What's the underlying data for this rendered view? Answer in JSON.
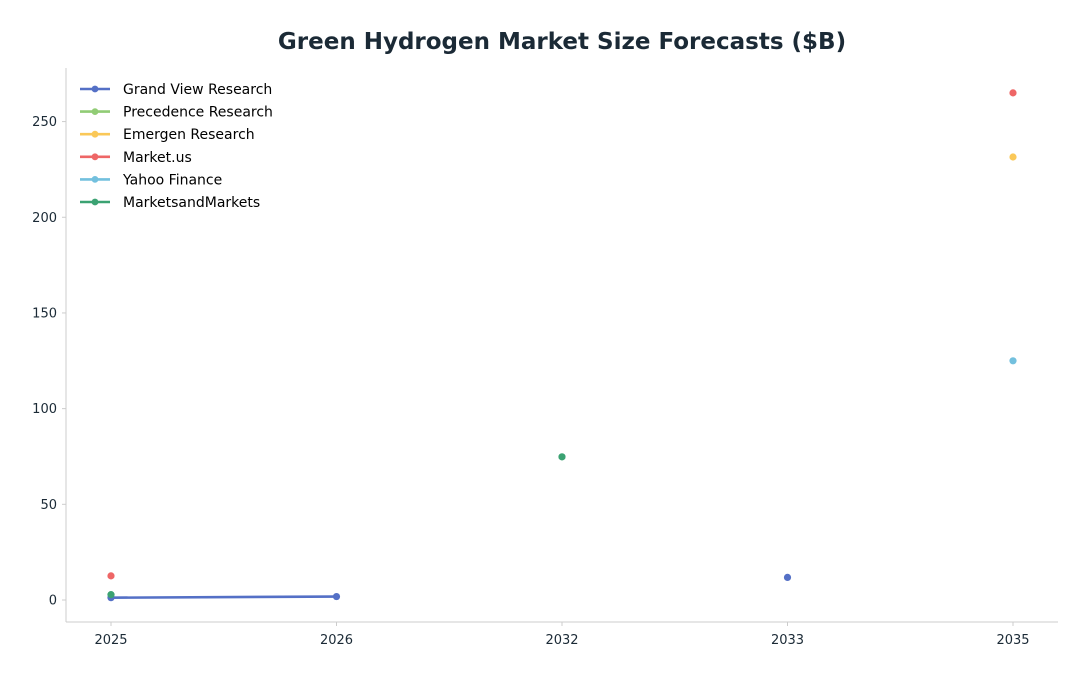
{
  "chart_data": {
    "type": "line",
    "title": "Green Hydrogen Market Size Forecasts ($B)",
    "xlabel": "",
    "ylabel": "",
    "categories": [
      "2025",
      "2026",
      "2032",
      "2033",
      "2035"
    ],
    "ylim": [
      -11.5,
      278
    ],
    "yticks": [
      0,
      50,
      100,
      150,
      200,
      250
    ],
    "grid": false,
    "legend_position": "top-left",
    "series": [
      {
        "name": "Grand View Research",
        "color": "#5470c6",
        "values": [
          1.2,
          1.8,
          null,
          11.8,
          null
        ]
      },
      {
        "name": "Precedence Research",
        "color": "#91cc75",
        "values": [
          null,
          null,
          null,
          null,
          null
        ]
      },
      {
        "name": "Emergen Research",
        "color": "#fac858",
        "values": [
          null,
          null,
          null,
          null,
          231.5
        ]
      },
      {
        "name": "Market.us",
        "color": "#ee6666",
        "values": [
          12.6,
          null,
          null,
          null,
          265.0
        ]
      },
      {
        "name": "Yahoo Finance",
        "color": "#73c0de",
        "values": [
          null,
          null,
          null,
          null,
          125.0
        ]
      },
      {
        "name": "MarketsandMarkets",
        "color": "#3ba272",
        "values": [
          2.8,
          null,
          74.8,
          null,
          null
        ]
      }
    ]
  }
}
